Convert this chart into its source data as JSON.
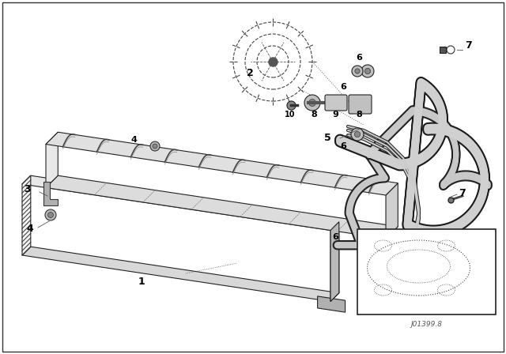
{
  "bg_color": "#ffffff",
  "fig_width": 6.4,
  "fig_height": 4.48,
  "dpi": 100,
  "watermark": "J01399.8",
  "cooler_color": "#f0f0f0",
  "cooler_top_color": "#e0e0e0",
  "cooler_edge_color": "#222222",
  "fin_color": "#555555",
  "pipe_outer_color": "#222222",
  "pipe_inner_color": "#cccccc",
  "fitting_color": "#888888",
  "label_fontsize": 9,
  "small_label_fontsize": 8
}
